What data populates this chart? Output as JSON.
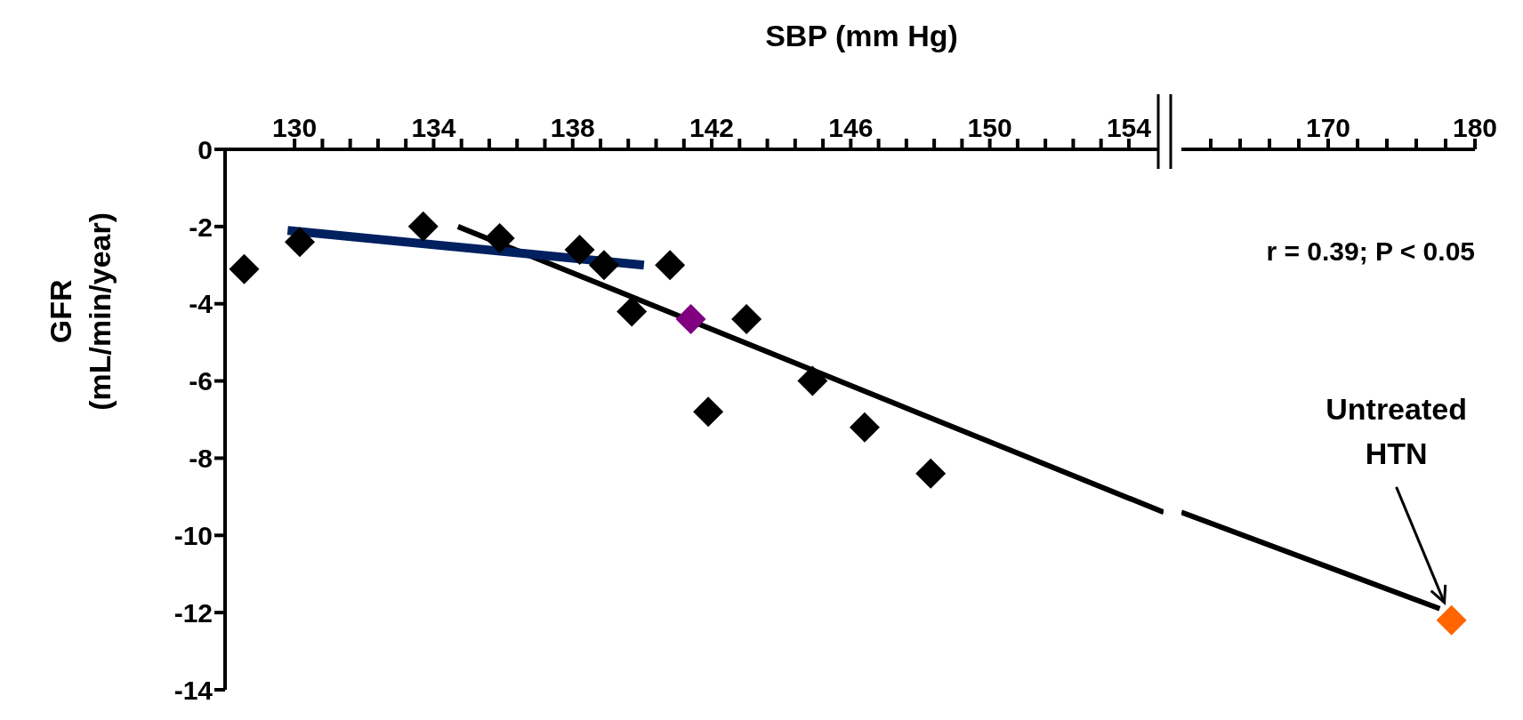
{
  "chart_data": [
    {
      "type": "scatter",
      "xlabel": "SBP (mm Hg)",
      "ylabel": "GFR\n(mL/min/year)",
      "xlim": [
        128,
        155
      ],
      "xticks": [
        130,
        {
          "value": 130.8,
          "label": null
        },
        {
          "value": 131.6,
          "label": null
        },
        {
          "value": 132.4,
          "label": null
        },
        {
          "value": 133.2,
          "label": null
        },
        134,
        {
          "value": 134.8,
          "label": null
        },
        {
          "value": 135.6,
          "label": null
        },
        {
          "value": 136.4,
          "label": null
        },
        {
          "value": 137.2,
          "label": null
        },
        138,
        {
          "value": 138.8,
          "label": null
        },
        {
          "value": 139.6,
          "label": null
        },
        {
          "value": 140.4,
          "label": null
        },
        {
          "value": 141.2,
          "label": null
        },
        142,
        {
          "value": 142.8,
          "label": null
        },
        {
          "value": 143.6,
          "label": null
        },
        {
          "value": 144.4,
          "label": null
        },
        {
          "value": 145.2,
          "label": null
        },
        146,
        {
          "value": 146.8,
          "label": null
        },
        {
          "value": 147.6,
          "label": null
        },
        {
          "value": 148.4,
          "label": null
        },
        {
          "value": 149.2,
          "label": null
        },
        150,
        {
          "value": 150.8,
          "label": null
        },
        {
          "value": 151.6,
          "label": null
        },
        {
          "value": 152.4,
          "label": null
        },
        {
          "value": 153.2,
          "label": null
        },
        154
      ],
      "ylim": [
        -14,
        0
      ],
      "yticks": [
        0,
        -2,
        -4,
        -6,
        -8,
        -10,
        -12,
        -14
      ],
      "marker": "diamond",
      "series": [
        {
          "color": "#000000",
          "x": [
            128.55,
            130.15,
            133.7,
            135.9,
            138.2,
            138.9,
            139.7,
            140.8,
            141.9,
            143.0,
            144.9,
            146.4,
            148.3
          ],
          "values": [
            -3.1,
            -2.4,
            -2.0,
            -2.3,
            -2.6,
            -3.0,
            -4.2,
            -3.0,
            -6.8,
            -4.4,
            -6.0,
            -7.2,
            -8.4
          ]
        },
        {
          "color": "#800080",
          "x": [
            141.4
          ],
          "values": [
            -4.4
          ]
        },
        {
          "type": "line",
          "marker": "none",
          "color": "#000000",
          "x": [
            134.7,
            155
          ],
          "values": [
            -2.0,
            -9.4
          ]
        },
        {
          "type": "line",
          "marker": "none",
          "color": "#002060",
          "x": [
            129.8,
            140.05
          ],
          "values": [
            -2.1,
            -3.0
          ]
        }
      ]
    },
    {
      "type": "scatter",
      "xlim": [
        160,
        180
      ],
      "xticks": [
        {
          "value": 162,
          "label": null
        },
        {
          "value": 164,
          "label": null
        },
        {
          "value": 166,
          "label": null
        },
        {
          "value": 168,
          "label": null
        },
        170,
        {
          "value": 172,
          "label": null
        },
        {
          "value": 174,
          "label": null
        },
        {
          "value": 176,
          "label": null
        },
        {
          "value": 178,
          "label": null
        },
        180
      ],
      "ylim": [
        -14,
        0
      ],
      "tick_labels": "x",
      "marker": "diamond",
      "series": [
        {
          "color": "#ff6600",
          "x": [
            178.4
          ],
          "values": [
            -12.2
          ]
        },
        {
          "type": "line",
          "marker": "none",
          "color": "#000000",
          "x": [
            160,
            177.6
          ],
          "values": [
            -9.4,
            -11.9
          ]
        }
      ],
      "annotations": [
        "r = 0.39; P < 0.05",
        "Untreated HTN"
      ]
    }
  ]
}
